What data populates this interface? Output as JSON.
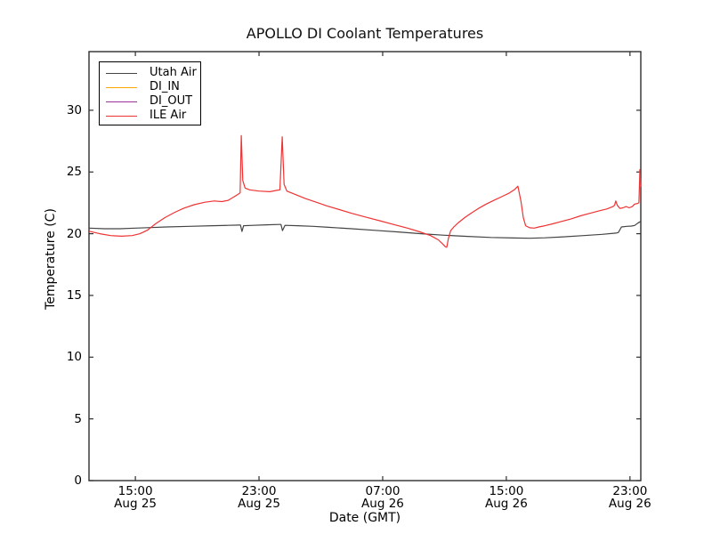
{
  "chart_data": {
    "type": "line",
    "title": "APOLLO DI Coolant Temperatures",
    "xlabel": "Date (GMT)",
    "ylabel": "Temperature (C)",
    "grid": false,
    "legend_position": "upper left",
    "x_unit": "hours since Aug 25 00:00 GMT",
    "xlim": [
      12.0,
      47.7
    ],
    "ylim": [
      0,
      34.75
    ],
    "y_ticks": [
      0,
      5,
      10,
      15,
      20,
      25,
      30
    ],
    "x_ticks": [
      {
        "t": 15,
        "line1": "15:00",
        "line2": "Aug 25"
      },
      {
        "t": 23,
        "line1": "23:00",
        "line2": "Aug 25"
      },
      {
        "t": 31,
        "line1": "07:00",
        "line2": "Aug 26"
      },
      {
        "t": 39,
        "line1": "15:00",
        "line2": "Aug 26"
      },
      {
        "t": 47,
        "line1": "23:00",
        "line2": "Aug 26"
      }
    ],
    "frame_color": "#2e2e2e",
    "series": [
      {
        "name": "Utah Air",
        "color": "#444444",
        "points": [
          [
            12.0,
            20.45
          ],
          [
            13.0,
            20.4
          ],
          [
            14.0,
            20.4
          ],
          [
            15.0,
            20.45
          ],
          [
            16.0,
            20.5
          ],
          [
            17.0,
            20.55
          ],
          [
            18.5,
            20.6
          ],
          [
            20.0,
            20.65
          ],
          [
            21.0,
            20.68
          ],
          [
            21.7,
            20.7
          ],
          [
            21.8,
            20.7
          ],
          [
            21.9,
            20.18
          ],
          [
            22.0,
            20.65
          ],
          [
            22.6,
            20.68
          ],
          [
            23.5,
            20.72
          ],
          [
            24.3,
            20.75
          ],
          [
            24.42,
            20.75
          ],
          [
            24.52,
            20.25
          ],
          [
            24.68,
            20.68
          ],
          [
            25.5,
            20.65
          ],
          [
            26.5,
            20.6
          ],
          [
            27.5,
            20.52
          ],
          [
            29.0,
            20.4
          ],
          [
            30.5,
            20.27
          ],
          [
            32.0,
            20.14
          ],
          [
            33.5,
            20.0
          ],
          [
            35.0,
            19.88
          ],
          [
            36.5,
            19.78
          ],
          [
            38.0,
            19.7
          ],
          [
            39.5,
            19.65
          ],
          [
            40.5,
            19.63
          ],
          [
            41.5,
            19.67
          ],
          [
            42.7,
            19.75
          ],
          [
            44.0,
            19.85
          ],
          [
            45.2,
            19.95
          ],
          [
            46.1,
            20.05
          ],
          [
            46.25,
            20.1
          ],
          [
            46.45,
            20.55
          ],
          [
            46.8,
            20.6
          ],
          [
            47.1,
            20.62
          ],
          [
            47.3,
            20.67
          ],
          [
            47.5,
            20.85
          ],
          [
            47.7,
            21.0
          ]
        ]
      },
      {
        "name": "DI_IN",
        "color": "#ffa500",
        "points": []
      },
      {
        "name": "DI_OUT",
        "color": "#993399",
        "points": []
      },
      {
        "name": "ILE Air",
        "color": "#ee3333",
        "points": [
          [
            12.0,
            20.2
          ],
          [
            12.7,
            20.0
          ],
          [
            13.4,
            19.85
          ],
          [
            14.1,
            19.8
          ],
          [
            14.8,
            19.85
          ],
          [
            15.3,
            20.0
          ],
          [
            15.8,
            20.3
          ],
          [
            16.3,
            20.8
          ],
          [
            16.9,
            21.3
          ],
          [
            17.5,
            21.7
          ],
          [
            18.1,
            22.05
          ],
          [
            18.8,
            22.35
          ],
          [
            19.5,
            22.55
          ],
          [
            20.1,
            22.65
          ],
          [
            20.6,
            22.6
          ],
          [
            21.0,
            22.7
          ],
          [
            21.4,
            23.0
          ],
          [
            21.65,
            23.2
          ],
          [
            21.78,
            23.3
          ],
          [
            21.85,
            27.95
          ],
          [
            21.95,
            24.3
          ],
          [
            22.1,
            23.7
          ],
          [
            22.4,
            23.55
          ],
          [
            23.0,
            23.45
          ],
          [
            23.7,
            23.4
          ],
          [
            24.1,
            23.5
          ],
          [
            24.35,
            23.55
          ],
          [
            24.5,
            27.85
          ],
          [
            24.62,
            24.0
          ],
          [
            24.8,
            23.45
          ],
          [
            25.3,
            23.2
          ],
          [
            26.0,
            22.85
          ],
          [
            26.7,
            22.55
          ],
          [
            27.4,
            22.25
          ],
          [
            28.2,
            21.95
          ],
          [
            29.0,
            21.65
          ],
          [
            29.9,
            21.35
          ],
          [
            30.8,
            21.05
          ],
          [
            31.7,
            20.75
          ],
          [
            32.6,
            20.45
          ],
          [
            33.4,
            20.15
          ],
          [
            34.1,
            19.85
          ],
          [
            34.6,
            19.5
          ],
          [
            34.9,
            19.15
          ],
          [
            35.05,
            18.95
          ],
          [
            35.15,
            18.9
          ],
          [
            35.25,
            19.6
          ],
          [
            35.4,
            20.25
          ],
          [
            35.6,
            20.55
          ],
          [
            35.9,
            20.9
          ],
          [
            36.3,
            21.3
          ],
          [
            36.7,
            21.65
          ],
          [
            37.2,
            22.05
          ],
          [
            37.7,
            22.4
          ],
          [
            38.2,
            22.7
          ],
          [
            38.7,
            23.0
          ],
          [
            39.2,
            23.3
          ],
          [
            39.55,
            23.6
          ],
          [
            39.75,
            23.85
          ],
          [
            39.95,
            22.6
          ],
          [
            40.1,
            21.3
          ],
          [
            40.25,
            20.65
          ],
          [
            40.5,
            20.48
          ],
          [
            40.8,
            20.45
          ],
          [
            41.1,
            20.55
          ],
          [
            41.5,
            20.65
          ],
          [
            42.0,
            20.8
          ],
          [
            42.6,
            21.0
          ],
          [
            43.2,
            21.2
          ],
          [
            43.8,
            21.45
          ],
          [
            44.4,
            21.65
          ],
          [
            45.0,
            21.85
          ],
          [
            45.5,
            22.0
          ],
          [
            45.9,
            22.2
          ],
          [
            46.0,
            22.3
          ],
          [
            46.08,
            22.65
          ],
          [
            46.18,
            22.3
          ],
          [
            46.35,
            22.05
          ],
          [
            46.55,
            22.1
          ],
          [
            46.75,
            22.2
          ],
          [
            46.95,
            22.1
          ],
          [
            47.15,
            22.2
          ],
          [
            47.3,
            22.4
          ],
          [
            47.5,
            22.45
          ],
          [
            47.58,
            22.5
          ],
          [
            47.64,
            25.2
          ],
          [
            47.7,
            23.8
          ]
        ]
      }
    ]
  }
}
